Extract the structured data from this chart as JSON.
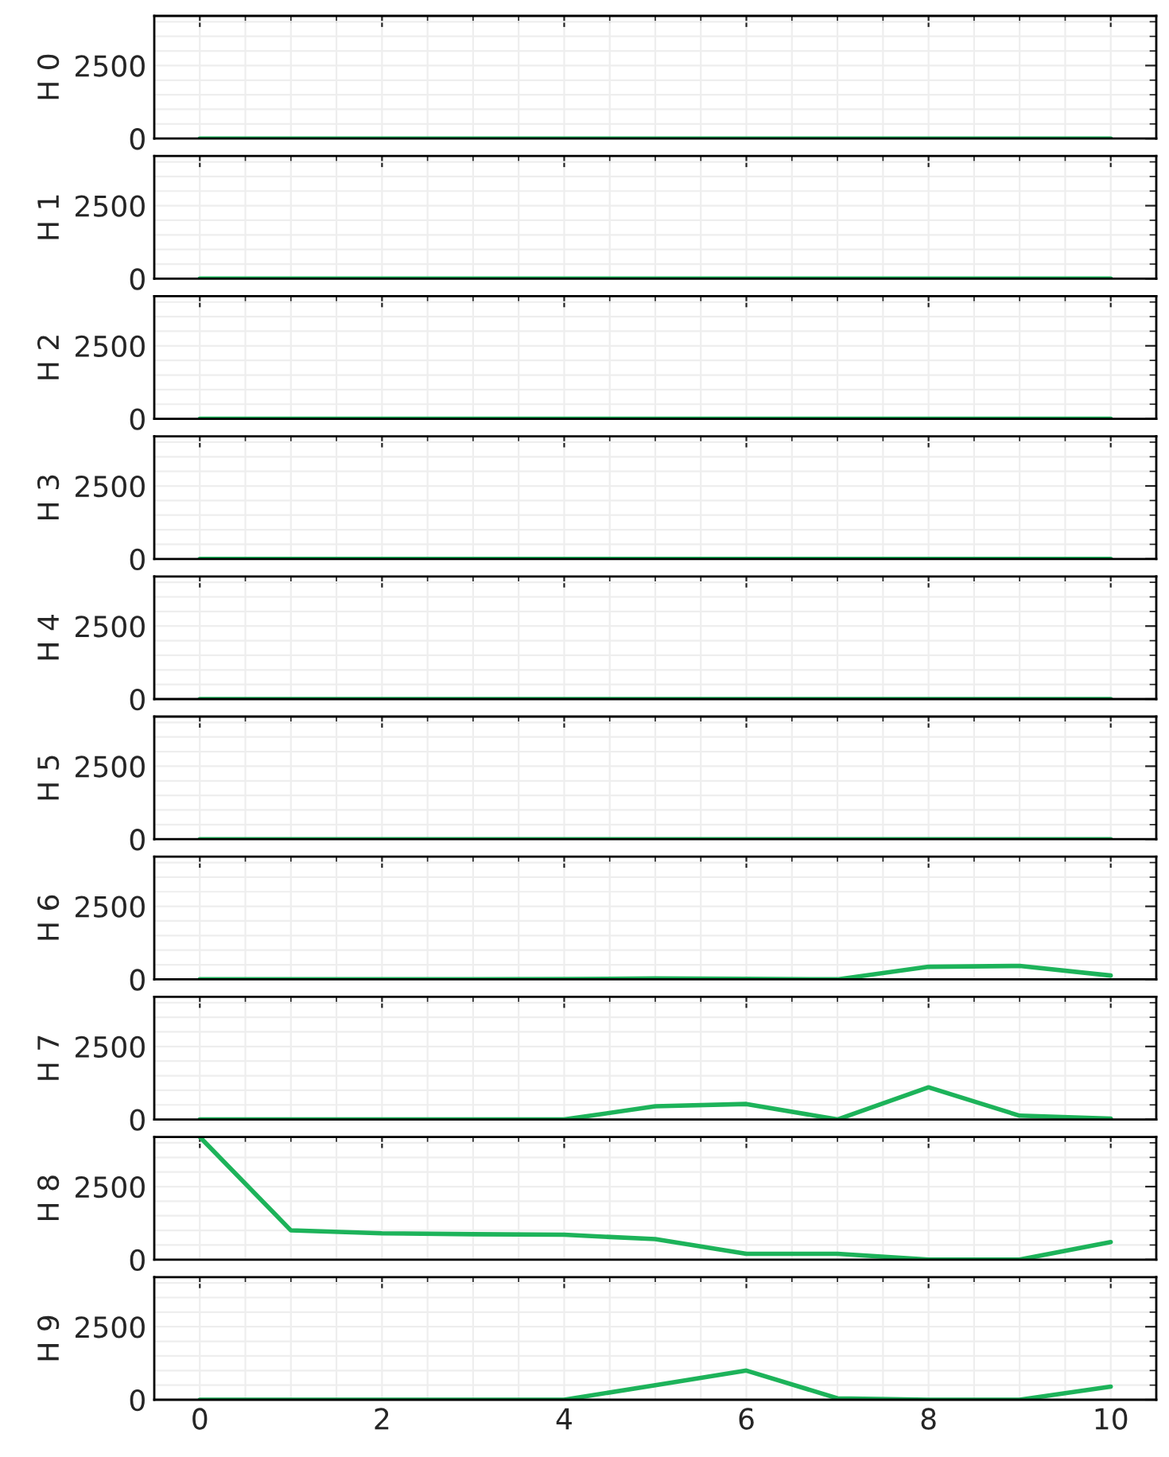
{
  "chart_data": [
    {
      "type": "line",
      "ylabel": "H 0",
      "x": [
        0,
        1,
        2,
        3,
        4,
        5,
        6,
        7,
        8,
        9,
        10
      ],
      "series": [
        {
          "color": "#1db35a",
          "values": [
            0,
            0,
            0,
            0,
            0,
            0,
            0,
            0,
            0,
            0,
            0
          ]
        }
      ],
      "xlim": [
        -0.5,
        10.5
      ],
      "ylim": [
        0,
        4200
      ],
      "xticks": [
        0,
        2,
        4,
        6,
        8,
        10
      ],
      "yticks": [
        0,
        2500
      ],
      "grid": true,
      "tick_labels": "y"
    },
    {
      "type": "line",
      "ylabel": "H 1",
      "x": [
        0,
        1,
        2,
        3,
        4,
        5,
        6,
        7,
        8,
        9,
        10
      ],
      "series": [
        {
          "color": "#1db35a",
          "values": [
            0,
            0,
            0,
            0,
            0,
            0,
            0,
            0,
            0,
            0,
            0
          ]
        }
      ],
      "xlim": [
        -0.5,
        10.5
      ],
      "ylim": [
        0,
        4200
      ],
      "xticks": [
        0,
        2,
        4,
        6,
        8,
        10
      ],
      "yticks": [
        0,
        2500
      ],
      "grid": true,
      "tick_labels": "y"
    },
    {
      "type": "line",
      "ylabel": "H 2",
      "x": [
        0,
        1,
        2,
        3,
        4,
        5,
        6,
        7,
        8,
        9,
        10
      ],
      "series": [
        {
          "color": "#1db35a",
          "values": [
            0,
            0,
            0,
            0,
            0,
            0,
            0,
            0,
            0,
            0,
            0
          ]
        }
      ],
      "xlim": [
        -0.5,
        10.5
      ],
      "ylim": [
        0,
        4200
      ],
      "xticks": [
        0,
        2,
        4,
        6,
        8,
        10
      ],
      "yticks": [
        0,
        2500
      ],
      "grid": true,
      "tick_labels": "y"
    },
    {
      "type": "line",
      "ylabel": "H 3",
      "x": [
        0,
        1,
        2,
        3,
        4,
        5,
        6,
        7,
        8,
        9,
        10
      ],
      "series": [
        {
          "color": "#1db35a",
          "values": [
            0,
            0,
            0,
            0,
            0,
            0,
            0,
            0,
            0,
            0,
            0
          ]
        }
      ],
      "xlim": [
        -0.5,
        10.5
      ],
      "ylim": [
        0,
        4200
      ],
      "xticks": [
        0,
        2,
        4,
        6,
        8,
        10
      ],
      "yticks": [
        0,
        2500
      ],
      "grid": true,
      "tick_labels": "y"
    },
    {
      "type": "line",
      "ylabel": "H 4",
      "x": [
        0,
        1,
        2,
        3,
        4,
        5,
        6,
        7,
        8,
        9,
        10
      ],
      "series": [
        {
          "color": "#1db35a",
          "values": [
            0,
            0,
            0,
            0,
            0,
            0,
            0,
            0,
            0,
            0,
            0
          ]
        }
      ],
      "xlim": [
        -0.5,
        10.5
      ],
      "ylim": [
        0,
        4200
      ],
      "xticks": [
        0,
        2,
        4,
        6,
        8,
        10
      ],
      "yticks": [
        0,
        2500
      ],
      "grid": true,
      "tick_labels": "y"
    },
    {
      "type": "line",
      "ylabel": "H 5",
      "x": [
        0,
        1,
        2,
        3,
        4,
        5,
        6,
        7,
        8,
        9,
        10
      ],
      "series": [
        {
          "color": "#1db35a",
          "values": [
            0,
            0,
            0,
            0,
            0,
            0,
            0,
            0,
            0,
            0,
            0
          ]
        }
      ],
      "xlim": [
        -0.5,
        10.5
      ],
      "ylim": [
        0,
        4200
      ],
      "xticks": [
        0,
        2,
        4,
        6,
        8,
        10
      ],
      "yticks": [
        0,
        2500
      ],
      "grid": true,
      "tick_labels": "y"
    },
    {
      "type": "line",
      "ylabel": "H 6",
      "x": [
        0,
        1,
        2,
        3,
        4,
        5,
        6,
        7,
        8,
        9,
        10
      ],
      "series": [
        {
          "color": "#1db35a",
          "values": [
            0,
            0,
            0,
            0,
            10,
            30,
            20,
            0,
            430,
            460,
            130
          ]
        }
      ],
      "xlim": [
        -0.5,
        10.5
      ],
      "ylim": [
        0,
        4200
      ],
      "xticks": [
        0,
        2,
        4,
        6,
        8,
        10
      ],
      "yticks": [
        0,
        2500
      ],
      "grid": true,
      "tick_labels": "y"
    },
    {
      "type": "line",
      "ylabel": "H 7",
      "x": [
        0,
        1,
        2,
        3,
        4,
        5,
        6,
        7,
        8,
        9,
        10
      ],
      "series": [
        {
          "color": "#1db35a",
          "values": [
            0,
            0,
            0,
            0,
            0,
            450,
            530,
            0,
            1100,
            130,
            30
          ]
        }
      ],
      "xlim": [
        -0.5,
        10.5
      ],
      "ylim": [
        0,
        4200
      ],
      "xticks": [
        0,
        2,
        4,
        6,
        8,
        10
      ],
      "yticks": [
        0,
        2500
      ],
      "grid": true,
      "tick_labels": "y"
    },
    {
      "type": "line",
      "ylabel": "H 8",
      "x": [
        0,
        1,
        2,
        3,
        4,
        5,
        6,
        7,
        8,
        9,
        10
      ],
      "series": [
        {
          "color": "#1db35a",
          "values": [
            4200,
            1000,
            900,
            870,
            850,
            700,
            200,
            200,
            0,
            0,
            600
          ]
        }
      ],
      "xlim": [
        -0.5,
        10.5
      ],
      "ylim": [
        0,
        4200
      ],
      "xticks": [
        0,
        2,
        4,
        6,
        8,
        10
      ],
      "yticks": [
        0,
        2500
      ],
      "grid": true,
      "tick_labels": "y"
    },
    {
      "type": "line",
      "ylabel": "H 9",
      "x": [
        0,
        1,
        2,
        3,
        4,
        5,
        6,
        7,
        8,
        9,
        10
      ],
      "series": [
        {
          "color": "#1db35a",
          "values": [
            0,
            0,
            0,
            0,
            0,
            500,
            1000,
            50,
            0,
            0,
            450
          ]
        }
      ],
      "xlim": [
        -0.5,
        10.5
      ],
      "ylim": [
        0,
        4200
      ],
      "xticks": [
        0,
        2,
        4,
        6,
        8,
        10
      ],
      "yticks": [
        0,
        2500
      ],
      "grid": true
    }
  ]
}
